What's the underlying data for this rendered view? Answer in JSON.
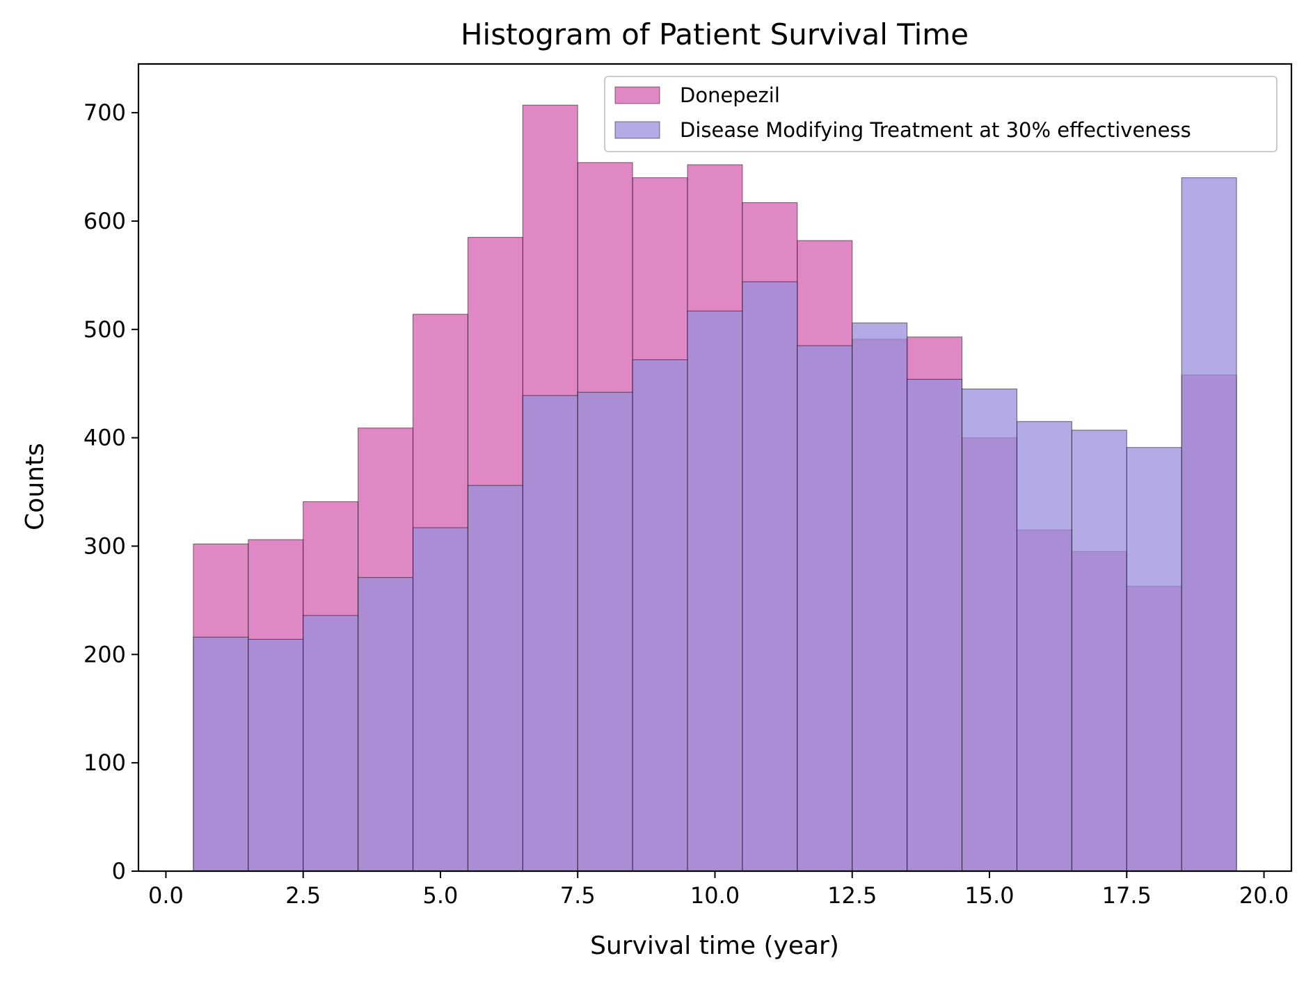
{
  "chart_data": {
    "type": "bar",
    "subtype": "overlaid-histogram",
    "title": "Histogram of Patient Survival Time",
    "xlabel": "Survival time (year)",
    "ylabel": "Counts",
    "xlim": [
      -0.5,
      20.5
    ],
    "ylim": [
      0,
      745
    ],
    "xticks": [
      "0.0",
      "2.5",
      "5.0",
      "7.5",
      "10.0",
      "12.5",
      "15.0",
      "17.5",
      "20.0"
    ],
    "yticks": [
      "0",
      "100",
      "200",
      "300",
      "400",
      "500",
      "600",
      "700"
    ],
    "bin_edges": [
      0.5,
      1.5,
      2.5,
      3.5,
      4.5,
      5.5,
      6.5,
      7.5,
      8.5,
      9.5,
      10.5,
      11.5,
      12.5,
      13.5,
      14.5,
      15.5,
      16.5,
      17.5,
      18.5,
      19.5
    ],
    "grid": false,
    "legend_position": "top-right",
    "series": [
      {
        "name": "Donepezil",
        "color": "#d660b0",
        "alpha": 0.75,
        "values": [
          302,
          306,
          341,
          409,
          514,
          585,
          707,
          654,
          640,
          652,
          617,
          582,
          491,
          493,
          400,
          315,
          295,
          263,
          458
        ]
      },
      {
        "name": "Disease Modifying Treatment at 30% effectiveness",
        "color": "#9a8fdc",
        "alpha": 0.75,
        "values": [
          216,
          214,
          236,
          271,
          317,
          356,
          439,
          442,
          472,
          517,
          544,
          485,
          506,
          454,
          445,
          415,
          407,
          391,
          640
        ]
      }
    ]
  }
}
